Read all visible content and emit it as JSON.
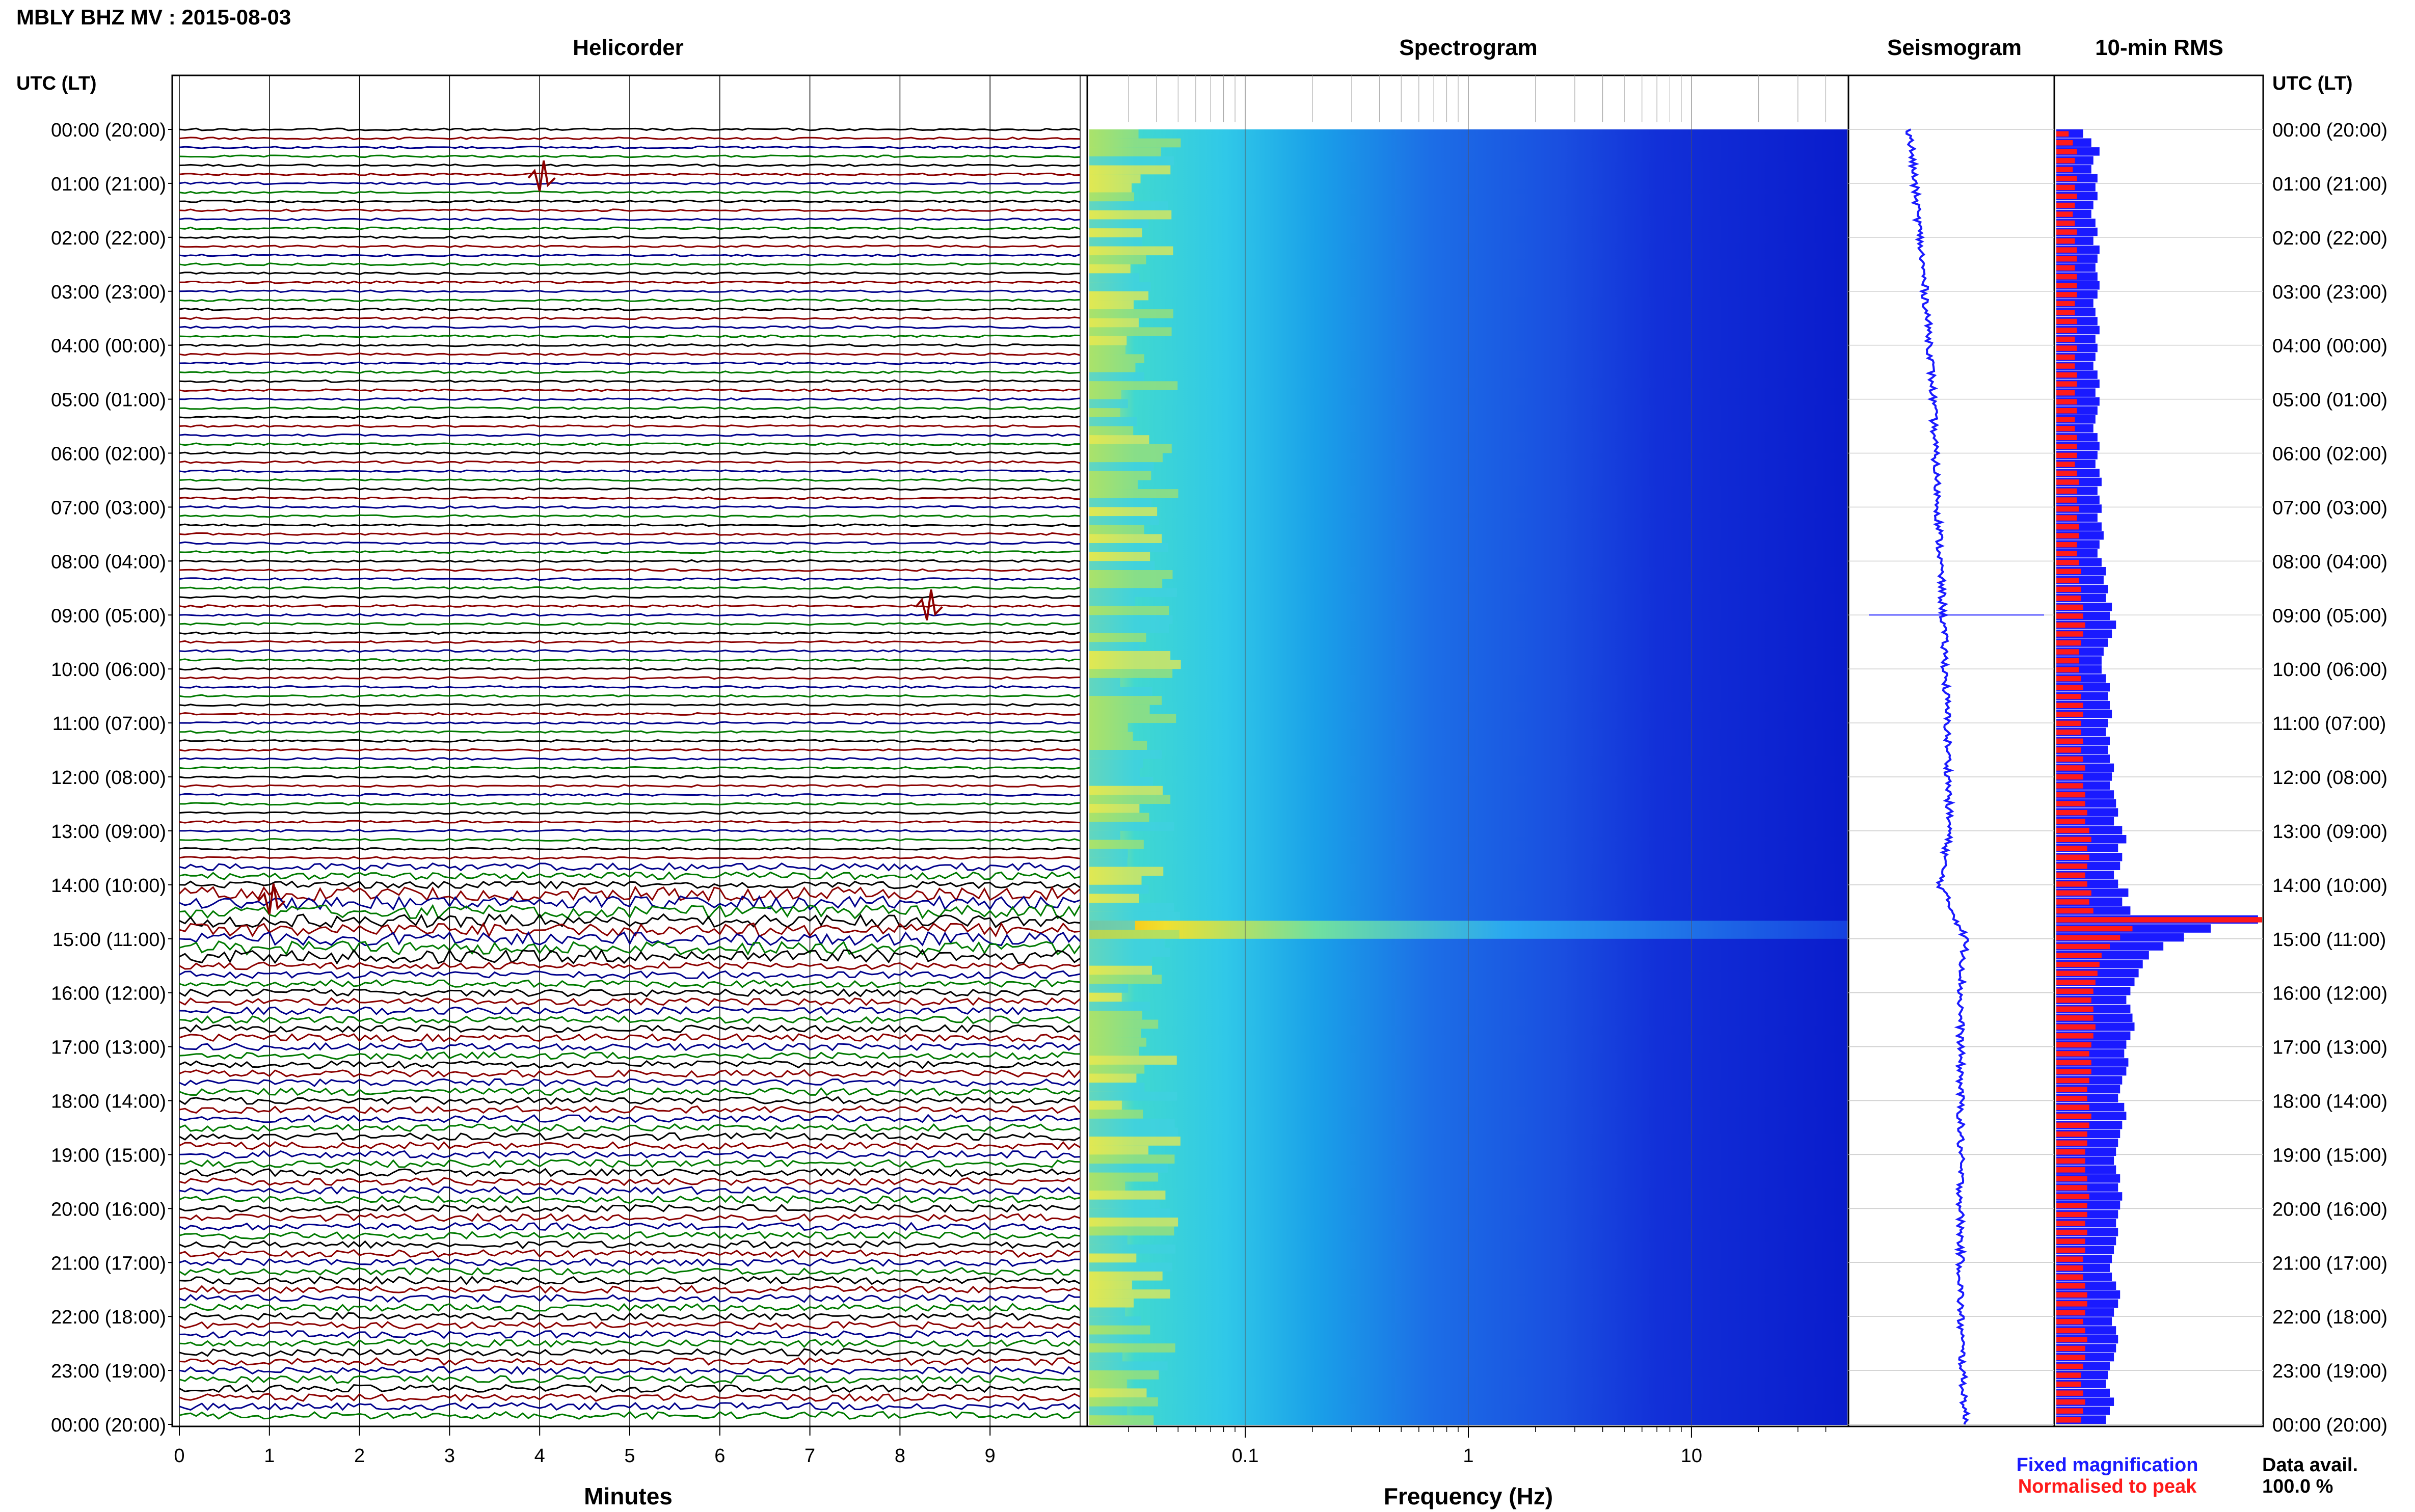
{
  "header": {
    "station_title": "MBLY BHZ MV : 2015-08-03",
    "utc_label_left": "UTC (LT)",
    "utc_label_right": "UTC (LT)"
  },
  "panels": {
    "helicorder_title": "Helicorder",
    "spectrogram_title": "Spectrogram",
    "seismogram_title": "Seismogram",
    "rms_title": "10-min RMS"
  },
  "axes": {
    "helicorder_xlabel": "Minutes",
    "spectrogram_xlabel": "Frequency (Hz)"
  },
  "legend": {
    "fixed": "Fixed magnification",
    "normalised": "Normalised to peak",
    "data_avail_label": "Data avail.",
    "data_avail_value": "100.0 %"
  },
  "colors": {
    "trace_cycle": [
      "#000000",
      "#8b0000",
      "#00008b",
      "#007a00"
    ],
    "rms_fixed": "#1a1aff",
    "rms_normalised": "#ff1a1a",
    "legend_fixed": "#1a1aff",
    "legend_normalised": "#ff1a1a",
    "seismogram": "#1a1aff"
  },
  "chart_data": [
    {
      "type": "line",
      "name": "helicorder",
      "title": "Helicorder",
      "xlabel": "Minutes",
      "x_ticks": [
        "0",
        "1",
        "2",
        "3",
        "4",
        "5",
        "6",
        "7",
        "8",
        "9"
      ],
      "xlim": [
        0,
        10
      ],
      "rows_per_hour": 6,
      "hour_ticks": [
        "00:00 (20:00)",
        "01:00 (21:00)",
        "02:00 (22:00)",
        "03:00 (23:00)",
        "04:00 (00:00)",
        "05:00 (01:00)",
        "06:00 (02:00)",
        "07:00 (03:00)",
        "08:00 (04:00)",
        "09:00 (05:00)",
        "10:00 (06:00)",
        "11:00 (07:00)",
        "12:00 (08:00)",
        "13:00 (09:00)",
        "14:00 (10:00)",
        "15:00 (11:00)",
        "16:00 (12:00)",
        "17:00 (13:00)",
        "18:00 (14:00)",
        "19:00 (15:00)",
        "20:00 (16:00)",
        "21:00 (17:00)",
        "22:00 (18:00)",
        "23:00 (19:00)",
        "00:00 (20:00)"
      ],
      "events": [
        {
          "hour": 0.9,
          "minute": 4.0
        },
        {
          "hour": 8.85,
          "minute": 8.3
        },
        {
          "hour": 14.3,
          "minute": 1.0
        }
      ]
    },
    {
      "type": "heatmap",
      "name": "spectrogram",
      "title": "Spectrogram",
      "xlabel": "Frequency (Hz)",
      "x_scale": "log",
      "x_ticks": [
        "0.1",
        "1",
        "10"
      ],
      "xlim": [
        0.02,
        50
      ],
      "colormap": "jet"
    },
    {
      "type": "line",
      "name": "seismogram",
      "title": "Seismogram",
      "x_offset": [
        0.05,
        0.1,
        0.15,
        0.2,
        0.25,
        0.28,
        0.3,
        0.33,
        0.35,
        0.38,
        0.4,
        0.42,
        0.43,
        0.44,
        0.35,
        0.6,
        0.55,
        0.55,
        0.55,
        0.55,
        0.55,
        0.55,
        0.55,
        0.57,
        0.6
      ]
    },
    {
      "type": "bar",
      "name": "10-min RMS",
      "title": "10-min RMS",
      "series": [
        {
          "name": "Fixed magnification",
          "values": [
            0.13,
            0.17,
            0.21,
            0.18,
            0.17,
            0.2,
            0.19,
            0.2,
            0.18,
            0.17,
            0.19,
            0.2,
            0.18,
            0.21,
            0.2,
            0.19,
            0.2,
            0.21,
            0.2,
            0.18,
            0.19,
            0.2,
            0.21,
            0.19,
            0.2,
            0.19,
            0.18,
            0.2,
            0.21,
            0.19,
            0.21,
            0.2,
            0.19,
            0.18,
            0.2,
            0.21,
            0.2,
            0.19,
            0.21,
            0.22,
            0.2,
            0.21,
            0.22,
            0.2,
            0.22,
            0.23,
            0.21,
            0.2,
            0.22,
            0.24,
            0.23,
            0.25,
            0.24,
            0.27,
            0.26,
            0.29,
            0.27,
            0.25,
            0.23,
            0.22,
            0.22,
            0.24,
            0.26,
            0.25,
            0.26,
            0.27,
            0.25,
            0.24,
            0.26,
            0.25,
            0.26,
            0.28,
            0.27,
            0.26,
            0.28,
            0.29,
            0.3,
            0.28,
            0.32,
            0.34,
            0.3,
            0.32,
            0.31,
            0.28,
            0.3,
            0.35,
            0.32,
            0.36,
            0.98,
            0.75,
            0.62,
            0.52,
            0.45,
            0.42,
            0.4,
            0.38,
            0.36,
            0.34,
            0.36,
            0.37,
            0.38,
            0.36,
            0.34,
            0.33,
            0.35,
            0.34,
            0.32,
            0.31,
            0.3,
            0.33,
            0.34,
            0.32,
            0.31,
            0.3,
            0.29,
            0.28,
            0.29,
            0.31,
            0.3,
            0.32,
            0.31,
            0.3,
            0.29,
            0.3,
            0.29,
            0.28,
            0.27,
            0.26,
            0.27,
            0.29,
            0.31,
            0.3,
            0.28,
            0.27,
            0.29,
            0.3,
            0.29,
            0.28,
            0.26,
            0.25,
            0.24,
            0.26,
            0.28,
            0.26,
            0.24
          ]
        },
        {
          "name": "Normalised to peak",
          "values": [
            0.06,
            0.08,
            0.1,
            0.09,
            0.08,
            0.1,
            0.09,
            0.1,
            0.09,
            0.08,
            0.09,
            0.1,
            0.09,
            0.1,
            0.1,
            0.09,
            0.1,
            0.1,
            0.1,
            0.09,
            0.09,
            0.1,
            0.1,
            0.09,
            0.1,
            0.09,
            0.09,
            0.1,
            0.1,
            0.09,
            0.1,
            0.1,
            0.09,
            0.09,
            0.1,
            0.1,
            0.1,
            0.09,
            0.1,
            0.11,
            0.1,
            0.1,
            0.11,
            0.1,
            0.11,
            0.11,
            0.1,
            0.1,
            0.11,
            0.12,
            0.11,
            0.12,
            0.12,
            0.13,
            0.13,
            0.14,
            0.13,
            0.12,
            0.11,
            0.11,
            0.11,
            0.12,
            0.13,
            0.12,
            0.13,
            0.13,
            0.12,
            0.12,
            0.13,
            0.12,
            0.13,
            0.14,
            0.13,
            0.13,
            0.14,
            0.14,
            0.15,
            0.14,
            0.16,
            0.17,
            0.15,
            0.16,
            0.15,
            0.14,
            0.15,
            0.17,
            0.16,
            0.18,
            1.0,
            0.37,
            0.31,
            0.26,
            0.22,
            0.21,
            0.2,
            0.19,
            0.18,
            0.17,
            0.18,
            0.18,
            0.19,
            0.18,
            0.17,
            0.16,
            0.17,
            0.17,
            0.16,
            0.15,
            0.15,
            0.16,
            0.17,
            0.16,
            0.15,
            0.15,
            0.14,
            0.14,
            0.14,
            0.15,
            0.15,
            0.16,
            0.15,
            0.15,
            0.14,
            0.15,
            0.14,
            0.14,
            0.13,
            0.13,
            0.13,
            0.14,
            0.15,
            0.15,
            0.14,
            0.13,
            0.14,
            0.15,
            0.14,
            0.14,
            0.13,
            0.12,
            0.12,
            0.13,
            0.14,
            0.13,
            0.12
          ]
        }
      ]
    }
  ]
}
